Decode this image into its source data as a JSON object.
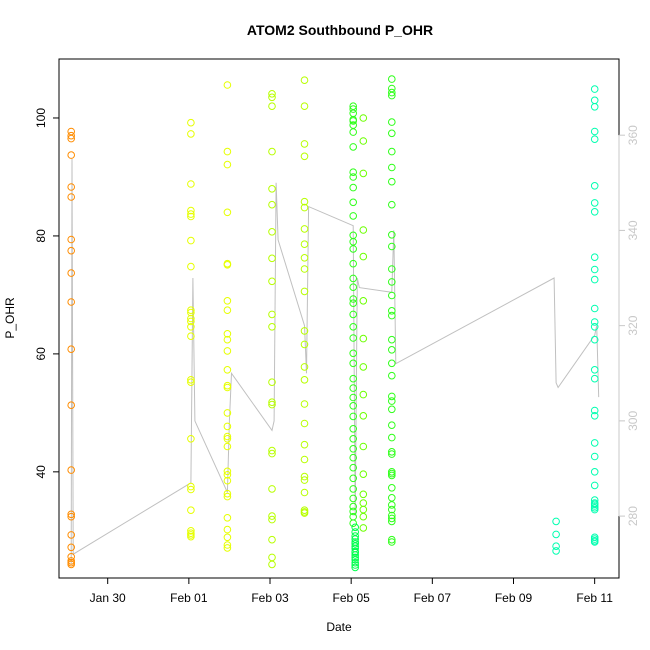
{
  "chart_data": {
    "type": "scatter",
    "title": "ATOM2 Southbound P_OHR",
    "xlabel": "Date",
    "ylabel": "P_OHR",
    "x_ticks": [
      "Jan 30",
      "Feb 01",
      "Feb 03",
      "Feb 05",
      "Feb 07",
      "Feb 09",
      "Feb 11"
    ],
    "x_tick_values": [
      1.0,
      3.0,
      5.0,
      7.0,
      9.0,
      11.0,
      13.0
    ],
    "xlim": [
      -0.2,
      13.6
    ],
    "ylim": [
      22,
      110
    ],
    "y_ticks": [
      40,
      60,
      80,
      100
    ],
    "y2lim": [
      267,
      376
    ],
    "y2_ticks": [
      280,
      300,
      320,
      340,
      360
    ],
    "grid": false,
    "colors": {
      "group1": "#ff8c00",
      "group2": "#e6ff00",
      "group3": "#b8ff00",
      "group4": "#6cff00",
      "group5": "#2fff1a",
      "group6": "#00ff4d",
      "group7": "#00ffb0",
      "line": "#c0c0c0"
    },
    "series": [
      {
        "color_key": "group1",
        "x": 0.1,
        "y": [
          97.7,
          97,
          96.5,
          93.7,
          88.3,
          86.6,
          79.4,
          77.5,
          73.7,
          68.8,
          60.8,
          51.3,
          40.3,
          32.8,
          32.4,
          29.3,
          27.2,
          25.6,
          24.9,
          24.6,
          24.3
        ]
      },
      {
        "color_key": "group2",
        "x": 3.05,
        "y": [
          99.2,
          97.3,
          88.8,
          84.3,
          83.7,
          83.3,
          79.2,
          74.8,
          67.4,
          67,
          66,
          65.5,
          64.6,
          63,
          55.6,
          55.2,
          45.6,
          37.5,
          37,
          33.5,
          30,
          29.6,
          29.3,
          29
        ]
      },
      {
        "color_key": "group2",
        "x": 3.95,
        "y": [
          105.6,
          94.3,
          92.1,
          84,
          75.3,
          75.1,
          69,
          67.4,
          63.4,
          62.4,
          60.5,
          57.3,
          54.6,
          54.3,
          50,
          47.7,
          46,
          45.6,
          44.3,
          40.1,
          39.5,
          38.5,
          36.3,
          35.8,
          32.2,
          30.2,
          28.9,
          27.6,
          27.1
        ]
      },
      {
        "color_key": "group3",
        "x": 5.05,
        "y": [
          104.1,
          103.5,
          102,
          94.3,
          88,
          85.3,
          80.7,
          76.2,
          72.3,
          66.7,
          64.6,
          55.2,
          51.8,
          51.4,
          43.6,
          43.1,
          37.1,
          32.5,
          31.9,
          28.5,
          25.5,
          24.3
        ]
      },
      {
        "color_key": "group3",
        "x": 5.85,
        "y": [
          106.4,
          102,
          95.6,
          93.5,
          85.8,
          84.8,
          81.2,
          78.6,
          76.3,
          74.4,
          70.6,
          63.9,
          61.6,
          57.8,
          55.6,
          51.5,
          48.2,
          44.6,
          42.1,
          39.2,
          38.6,
          36.5,
          33.5,
          33.2,
          33
        ]
      },
      {
        "color_key": "group5",
        "x": 7.05,
        "y": [
          102,
          101.5,
          100.8,
          99.7,
          99.5,
          98.8,
          97.6,
          95.1,
          90.8,
          90,
          88.2,
          85.7,
          83.4,
          80.1,
          79,
          77.8,
          75.3,
          72.8,
          71.3,
          69.3,
          68.6,
          66.7,
          64.6,
          62.7,
          60.1,
          58.4,
          55.8,
          54.2,
          52.6,
          51.2,
          49.4,
          47.3,
          45.6,
          43.9,
          42.4,
          40.7,
          38.9,
          37.1,
          35.5,
          34.1,
          33.3,
          32.4,
          31.3
        ]
      },
      {
        "color_key": "group6",
        "x": 7.1,
        "y": [
          30.6,
          29.8,
          29.1,
          28.6,
          28.1,
          27.8,
          27.4,
          27,
          26.5,
          26.3,
          25.9,
          25.5,
          25.1,
          24.6,
          24.2,
          23.8
        ]
      },
      {
        "color_key": "group4",
        "x": 7.3,
        "y": [
          100,
          96.1,
          90.6,
          81,
          76.5,
          69,
          62.6,
          57.8,
          53.1,
          49.5,
          44.3,
          39.6,
          36.2,
          34.7,
          33.6,
          32.4,
          30.5
        ]
      },
      {
        "color_key": "group5",
        "x": 8.0,
        "y": [
          106.6,
          105,
          104.3,
          103.8,
          99.3,
          97.4,
          94.3,
          91.6,
          89.2,
          85.3,
          80.2,
          78.2,
          74.4,
          72.2,
          69.9,
          67.3,
          66.5,
          62.4,
          60.7,
          58.4,
          56.3,
          52.8,
          52,
          50.6,
          47.9,
          45.8,
          43.4,
          43,
          40,
          39.7,
          39.4,
          37.3,
          35.6,
          34.4,
          33.6,
          32.6,
          32.1,
          31.6,
          28.5,
          28.1
        ]
      },
      {
        "color_key": "group7",
        "x": 12.05,
        "y": [
          31.6,
          29.4,
          27.4,
          26.6
        ]
      },
      {
        "color_key": "group7",
        "x": 13.0,
        "y": [
          104.9,
          103,
          101.9,
          97.7,
          96.4,
          88.5,
          85.6,
          84.1,
          76.4,
          74.3,
          72.6,
          67.7,
          65.4,
          64.6,
          62.4,
          57.3,
          55.8,
          50.4,
          49.5,
          44.9,
          42.6,
          40,
          37.7,
          35.2,
          34.7,
          34.5,
          34.2,
          33.9,
          33.6,
          28.9,
          28.6,
          28.3,
          28.1
        ]
      }
    ],
    "secondary_line": {
      "x": [
        0.1,
        0.12,
        0.15,
        3.05,
        3.1,
        3.15,
        3.2,
        3.95,
        4.0,
        4.05,
        5.05,
        5.1,
        5.15,
        5.2,
        5.85,
        5.9,
        5.95,
        7.05,
        7.1,
        7.15,
        7.2,
        8.0,
        8.05,
        8.1,
        12.0,
        12.05,
        12.1,
        13.0,
        13.05,
        13.1
      ],
      "y": [
        270,
        355,
        272,
        287,
        330,
        300,
        299,
        285,
        300,
        310,
        298,
        300,
        350,
        338,
        320,
        310,
        345,
        341,
        280,
        330,
        328,
        327,
        340,
        312,
        330,
        308,
        307,
        318,
        320,
        305
      ]
    }
  }
}
